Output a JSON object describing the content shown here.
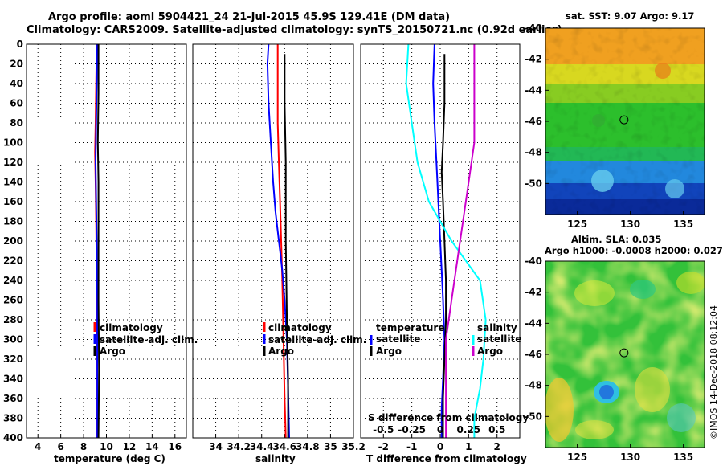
{
  "header": {
    "title_line1": "Argo profile: aoml 5904421_24 21-Jul-2015 45.9S 129.41E (DM data)",
    "title_line2": "Climatology: CARS2009. Satellite-adjusted climatology: synTS_20150721.nc (0.92d earlier)"
  },
  "depth_axis": {
    "ticks": [
      0,
      20,
      40,
      60,
      80,
      100,
      120,
      140,
      160,
      180,
      200,
      220,
      240,
      260,
      280,
      300,
      320,
      340,
      360,
      380,
      400
    ],
    "range": [
      0,
      400
    ]
  },
  "colors": {
    "climatology": "#ff0000",
    "satellite": "#0000ff",
    "argo": "#000000",
    "sal_satellite": "#00ffff",
    "sal_argo": "#cc00cc"
  },
  "chart_data": [
    {
      "type": "line",
      "id": "temperature",
      "xlabel": "temperature (deg C)",
      "xlim": [
        3,
        17
      ],
      "xticks": [
        4,
        6,
        8,
        10,
        12,
        14,
        16
      ],
      "ylim": [
        0,
        400
      ],
      "legend": [
        "climatology",
        "satellite-adj. clim.",
        "Argo"
      ],
      "series": [
        {
          "name": "climatology",
          "x": [
            9.15,
            9.1,
            9.05,
            9.0,
            9.05,
            9.1,
            9.15,
            9.2,
            9.2,
            9.2
          ],
          "y": [
            0,
            40,
            80,
            110,
            140,
            180,
            240,
            300,
            360,
            400
          ]
        },
        {
          "name": "satellite-adj. clim.",
          "x": [
            9.2,
            9.15,
            9.1,
            9.05,
            9.1,
            9.15,
            9.2,
            9.2,
            9.2
          ],
          "y": [
            0,
            40,
            80,
            120,
            160,
            200,
            260,
            320,
            400
          ]
        },
        {
          "name": "Argo",
          "x": [
            9.3,
            9.3,
            9.25,
            9.3,
            9.3,
            9.3,
            9.35,
            9.3
          ],
          "y": [
            0,
            50,
            100,
            140,
            200,
            260,
            330,
            400
          ]
        }
      ]
    },
    {
      "type": "line",
      "id": "salinity",
      "xlabel": "salinity",
      "xlim": [
        33.8,
        35.2
      ],
      "xticks": [
        34,
        34.2,
        34.4,
        34.6,
        34.8,
        35,
        35.2
      ],
      "xtick_labels": [
        "34",
        "34.2",
        "34.4",
        "34.6",
        "34.8",
        "35",
        "35.2"
      ],
      "ylim": [
        0,
        400
      ],
      "legend": [
        "climatology",
        "satellite-adj. clim.",
        "Argo"
      ],
      "series": [
        {
          "name": "climatology",
          "x": [
            34.54,
            34.54,
            34.54,
            34.55,
            34.56,
            34.57,
            34.58,
            34.59,
            34.6,
            34.61
          ],
          "y": [
            0,
            40,
            80,
            120,
            160,
            200,
            240,
            300,
            360,
            400
          ]
        },
        {
          "name": "satellite-adj. clim.",
          "x": [
            34.46,
            34.45,
            34.46,
            34.48,
            34.5,
            34.52,
            34.54,
            34.56,
            34.58,
            34.6,
            34.62,
            34.63,
            34.64
          ],
          "y": [
            0,
            20,
            60,
            100,
            140,
            170,
            190,
            210,
            230,
            260,
            300,
            350,
            400
          ]
        },
        {
          "name": "Argo",
          "x": [
            34.6,
            34.6,
            34.61,
            34.61,
            34.62,
            34.63,
            34.63
          ],
          "y": [
            10,
            60,
            120,
            200,
            280,
            340,
            400
          ]
        }
      ]
    },
    {
      "type": "line",
      "id": "difference",
      "xlabel": "T difference from climatology",
      "xlim": [
        -2.8,
        2.8
      ],
      "xticks": [
        -2,
        -1,
        0,
        1,
        2
      ],
      "secondary_xlabel": "S difference from climatology",
      "secondary_xticks": [
        -0.5,
        -0.25,
        0,
        0.25,
        0.5
      ],
      "secondary_xtick_labels": [
        "-0.5",
        "-0.25",
        "0",
        "0.25",
        "0.5"
      ],
      "ylim": [
        0,
        400
      ],
      "legend_temperature": {
        "heading": "temperature",
        "items": [
          "satellite",
          "Argo"
        ]
      },
      "legend_salinity": {
        "heading": "salinity",
        "items": [
          "satellite",
          "Argo"
        ]
      },
      "series": [
        {
          "name": "T satellite",
          "x": [
            -0.2,
            -0.25,
            -0.2,
            -0.15,
            -0.1,
            -0.05,
            0.0,
            0.05,
            0.1,
            0.15,
            0.1,
            0.05,
            0.05
          ],
          "y": [
            0,
            40,
            80,
            110,
            140,
            170,
            200,
            230,
            260,
            300,
            340,
            370,
            400
          ]
        },
        {
          "name": "T Argo",
          "x": [
            0.15,
            0.15,
            0.1,
            0.05,
            0.1,
            0.15,
            0.2,
            0.2,
            0.15,
            0.1,
            0.1
          ],
          "y": [
            10,
            60,
            100,
            130,
            160,
            200,
            240,
            280,
            320,
            360,
            400
          ]
        },
        {
          "name": "S satellite",
          "x": [
            -0.28,
            -0.3,
            -0.25,
            -0.2,
            -0.1,
            0.1,
            0.35,
            0.4,
            0.38,
            0.35,
            0.3,
            0.3
          ],
          "y": [
            0,
            40,
            80,
            120,
            160,
            200,
            240,
            280,
            320,
            350,
            380,
            400
          ]
        },
        {
          "name": "S Argo",
          "x": [
            0.3,
            0.3,
            0.3,
            0.25,
            0.2,
            0.15,
            0.1,
            0.05,
            0.05,
            0.05
          ],
          "y": [
            0,
            50,
            100,
            140,
            180,
            220,
            260,
            300,
            350,
            400
          ]
        }
      ]
    },
    {
      "type": "heatmap",
      "id": "sst_map",
      "title": "sat. SST: 9.07 Argo: 9.17",
      "xlim": [
        122,
        137
      ],
      "ylim": [
        -52,
        -40
      ],
      "xticks": [
        125,
        130,
        135
      ],
      "yticks": [
        -40,
        -42,
        -44,
        -46,
        -48,
        -50
      ],
      "marker": {
        "lon": 129.41,
        "lat": -45.9
      }
    },
    {
      "type": "heatmap",
      "id": "sla_map",
      "title_line1": "Altim. SLA: 0.035",
      "title_line2": "Argo h1000: -0.0008 h2000: 0.027",
      "xlim": [
        122,
        137
      ],
      "ylim": [
        -52,
        -40
      ],
      "xticks": [
        125,
        130,
        135
      ],
      "yticks": [
        -40,
        -42,
        -44,
        -46,
        -48,
        -50
      ],
      "marker": {
        "lon": 129.41,
        "lat": -45.9
      }
    }
  ],
  "credit": "©IMOS 14-Dec-2018 08:12:04"
}
